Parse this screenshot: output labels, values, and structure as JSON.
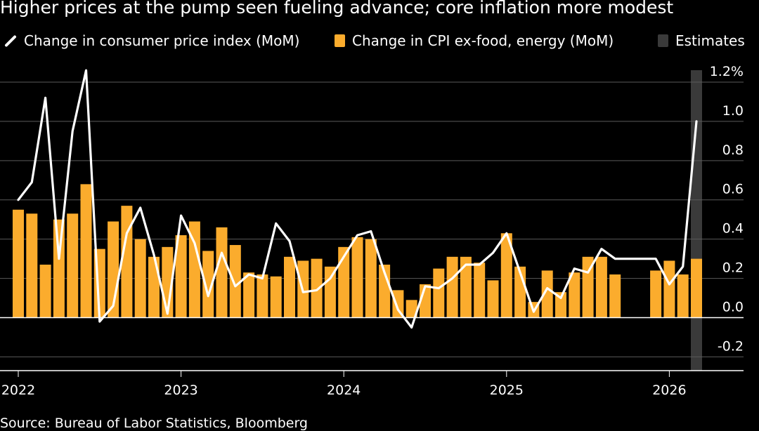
{
  "title": "Higher prices at the pump seen fueling advance; core inflation more modest",
  "legend": {
    "cpi": "Change in consumer price index (MoM)",
    "core": "Change in CPI ex-food, energy (MoM)",
    "estimates": "Estimates"
  },
  "source": "Source: Bureau of Labor Statistics, Bloomberg",
  "colors": {
    "background": "#000000",
    "cpi_line": "#ffffff",
    "core_bar": "#fbac2d",
    "estimate_band": "#3a3a3a",
    "grid": "#5a5a5a"
  },
  "chart_data": {
    "type": "bar+line",
    "title": "Higher prices at the pump seen fueling advance; core inflation more modest",
    "xlabel": "",
    "ylabel": "",
    "ylim": [
      -0.27,
      1.25
    ],
    "ytick_values": [
      -0.2,
      0.0,
      0.2,
      0.4,
      0.6,
      0.8,
      1.0,
      1.2
    ],
    "ytick_labels": [
      "-0.2",
      "0.0",
      "0.2",
      "0.4",
      "0.6",
      "0.8",
      "1.0",
      "1.2%"
    ],
    "xtick_labels": [
      "2022",
      "2023",
      "2024",
      "2025",
      "2026"
    ],
    "xtick_month_index": [
      0,
      12,
      24,
      36,
      48
    ],
    "months": [
      "2022-01",
      "2022-02",
      "2022-03",
      "2022-04",
      "2022-05",
      "2022-06",
      "2022-07",
      "2022-08",
      "2022-09",
      "2022-10",
      "2022-11",
      "2022-12",
      "2023-01",
      "2023-02",
      "2023-03",
      "2023-04",
      "2023-05",
      "2023-06",
      "2023-07",
      "2023-08",
      "2023-09",
      "2023-10",
      "2023-11",
      "2023-12",
      "2024-01",
      "2024-02",
      "2024-03",
      "2024-04",
      "2024-05",
      "2024-06",
      "2024-07",
      "2024-08",
      "2024-09",
      "2024-10",
      "2024-11",
      "2024-12",
      "2025-01",
      "2025-02",
      "2025-03",
      "2025-04",
      "2025-05",
      "2025-06",
      "2025-07",
      "2025-08",
      "2025-09",
      "2025-10",
      "2025-11",
      "2025-12",
      "2026-01",
      "2026-02",
      "2026-03"
    ],
    "series": [
      {
        "name": "Change in CPI ex-food, energy (MoM)",
        "kind": "bar",
        "values": [
          0.55,
          0.53,
          0.27,
          0.5,
          0.53,
          0.68,
          0.35,
          0.49,
          0.57,
          0.4,
          0.31,
          0.36,
          0.42,
          0.49,
          0.34,
          0.46,
          0.37,
          0.23,
          0.22,
          0.21,
          0.31,
          0.29,
          0.3,
          0.26,
          0.36,
          0.41,
          0.4,
          0.27,
          0.14,
          0.09,
          0.17,
          0.25,
          0.31,
          0.31,
          0.28,
          0.19,
          0.43,
          0.26,
          0.08,
          0.24,
          0.13,
          0.23,
          0.31,
          0.31,
          0.22,
          null,
          null,
          0.24,
          0.29,
          0.22,
          0.3
        ]
      },
      {
        "name": "Change in consumer price index (MoM)",
        "kind": "line",
        "values": [
          0.6,
          0.69,
          1.12,
          0.3,
          0.95,
          1.26,
          -0.02,
          0.06,
          0.43,
          0.56,
          0.32,
          0.02,
          0.52,
          0.38,
          0.11,
          0.33,
          0.16,
          0.22,
          0.2,
          0.48,
          0.39,
          0.13,
          0.14,
          0.2,
          0.31,
          0.42,
          0.44,
          0.23,
          0.04,
          -0.05,
          0.16,
          0.15,
          0.2,
          0.27,
          0.27,
          0.33,
          0.43,
          0.23,
          0.03,
          0.15,
          0.1,
          0.25,
          0.23,
          0.35,
          0.3,
          0.3,
          0.3,
          0.3,
          0.17,
          0.26,
          1.0
        ]
      }
    ],
    "estimates_months": [
      "2026-03"
    ]
  }
}
